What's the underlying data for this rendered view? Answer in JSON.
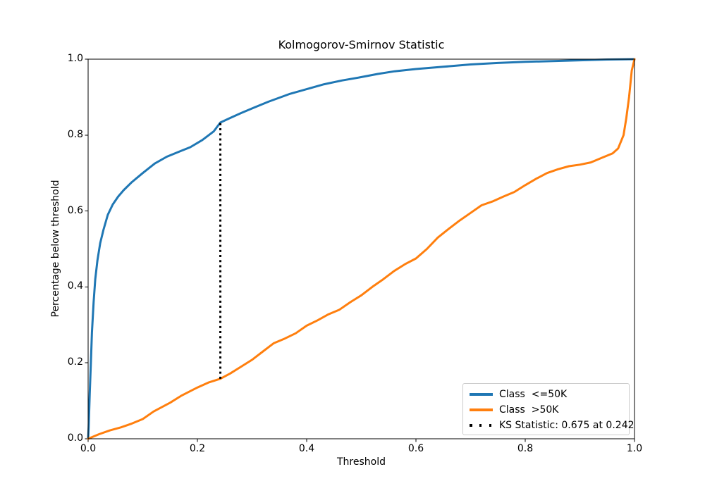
{
  "chart_data": {
    "type": "line",
    "title": "Kolmogorov-Smirnov Statistic",
    "xlabel": "Threshold",
    "ylabel": "Percentage below threshold",
    "xlim": [
      0,
      1
    ],
    "ylim": [
      0,
      1
    ],
    "xticks": [
      "0.0",
      "0.2",
      "0.4",
      "0.6",
      "0.8",
      "1.0"
    ],
    "yticks": [
      "0.0",
      "0.2",
      "0.4",
      "0.6",
      "0.8",
      "1.0"
    ],
    "grid": false,
    "legend": {
      "position": "lower right",
      "entries": [
        {
          "label": "Class  <=50K",
          "color": "#1f77b4",
          "style": "solid"
        },
        {
          "label": "Class  >50K",
          "color": "#ff7f0e",
          "style": "solid"
        },
        {
          "label": "KS Statistic: 0.675 at 0.242",
          "color": "#000000",
          "style": "dotted"
        }
      ]
    },
    "series": [
      {
        "name": "Class  <=50K",
        "color": "#1f77b4",
        "linewidth": 3,
        "x": [
          0.0,
          0.001,
          0.003,
          0.005,
          0.007,
          0.01,
          0.013,
          0.017,
          0.022,
          0.028,
          0.036,
          0.045,
          0.055,
          0.065,
          0.08,
          0.1,
          0.122,
          0.144,
          0.166,
          0.187,
          0.209,
          0.23,
          0.242,
          0.26,
          0.28,
          0.303,
          0.33,
          0.368,
          0.4,
          0.432,
          0.465,
          0.497,
          0.53,
          0.561,
          0.6,
          0.65,
          0.7,
          0.75,
          0.8,
          0.85,
          0.9,
          0.95,
          1.0
        ],
        "y": [
          0.0,
          0.03,
          0.12,
          0.2,
          0.28,
          0.36,
          0.42,
          0.47,
          0.515,
          0.55,
          0.59,
          0.617,
          0.638,
          0.655,
          0.676,
          0.7,
          0.725,
          0.743,
          0.756,
          0.768,
          0.787,
          0.81,
          0.833,
          0.845,
          0.858,
          0.872,
          0.888,
          0.908,
          0.921,
          0.934,
          0.944,
          0.952,
          0.961,
          0.968,
          0.974,
          0.98,
          0.986,
          0.99,
          0.993,
          0.995,
          0.997,
          0.999,
          1.0
        ]
      },
      {
        "name": "Class  >50K",
        "color": "#ff7f0e",
        "linewidth": 3,
        "x": [
          0.0,
          0.02,
          0.04,
          0.06,
          0.08,
          0.1,
          0.12,
          0.15,
          0.17,
          0.2,
          0.22,
          0.242,
          0.26,
          0.28,
          0.3,
          0.32,
          0.34,
          0.36,
          0.38,
          0.4,
          0.42,
          0.44,
          0.46,
          0.48,
          0.5,
          0.52,
          0.54,
          0.56,
          0.58,
          0.6,
          0.62,
          0.64,
          0.66,
          0.68,
          0.7,
          0.72,
          0.74,
          0.76,
          0.78,
          0.8,
          0.82,
          0.84,
          0.86,
          0.88,
          0.9,
          0.92,
          0.94,
          0.96,
          0.97,
          0.98,
          0.985,
          0.99,
          0.995,
          1.0
        ],
        "y": [
          0.0,
          0.012,
          0.022,
          0.03,
          0.04,
          0.052,
          0.072,
          0.095,
          0.113,
          0.135,
          0.148,
          0.158,
          0.172,
          0.19,
          0.208,
          0.23,
          0.252,
          0.264,
          0.278,
          0.298,
          0.312,
          0.328,
          0.34,
          0.36,
          0.378,
          0.4,
          0.42,
          0.442,
          0.46,
          0.475,
          0.5,
          0.53,
          0.553,
          0.575,
          0.595,
          0.615,
          0.625,
          0.638,
          0.65,
          0.668,
          0.685,
          0.7,
          0.71,
          0.718,
          0.722,
          0.728,
          0.74,
          0.752,
          0.765,
          0.8,
          0.845,
          0.9,
          0.97,
          1.0
        ]
      }
    ],
    "ks_line": {
      "x": 0.242,
      "y_from": 0.158,
      "y_to": 0.833,
      "value": 0.675,
      "threshold": 0.242,
      "color": "#000000",
      "style": "dotted",
      "linewidth": 3
    },
    "axis_color": "#000000"
  }
}
